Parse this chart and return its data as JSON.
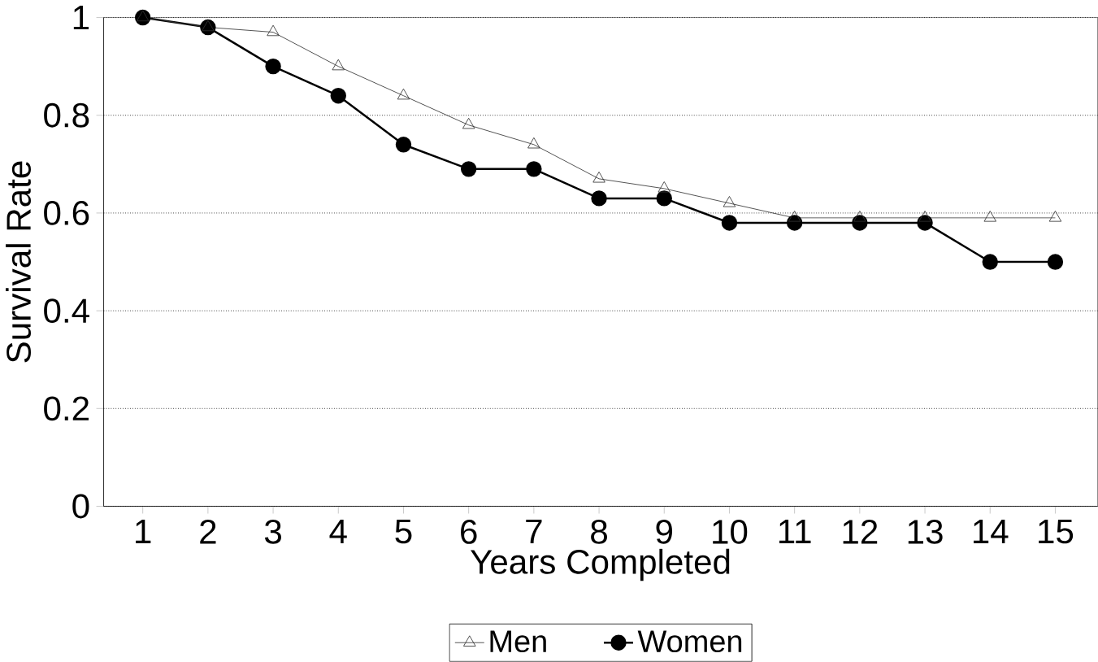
{
  "chart_data": {
    "type": "line",
    "xlabel": "Years Completed",
    "ylabel": "Survival Rate",
    "categories": [
      "1",
      "2",
      "3",
      "4",
      "5",
      "6",
      "7",
      "8",
      "9",
      "10",
      "11",
      "12",
      "13",
      "14",
      "15"
    ],
    "series": [
      {
        "name": "Men",
        "color": "#333333",
        "marker": "triangle",
        "values": [
          1.0,
          0.98,
          0.97,
          0.9,
          0.84,
          0.78,
          0.74,
          0.67,
          0.65,
          0.62,
          0.59,
          0.59,
          0.59,
          0.59,
          0.59
        ]
      },
      {
        "name": "Women",
        "color": "#000000",
        "marker": "circle",
        "values": [
          1.0,
          0.98,
          0.9,
          0.84,
          0.74,
          0.69,
          0.69,
          0.63,
          0.63,
          0.58,
          0.58,
          0.58,
          0.58,
          0.5,
          0.5
        ]
      }
    ],
    "ylim": [
      0,
      1
    ],
    "yticks": [
      0,
      0.2,
      0.4,
      0.6,
      0.8,
      1
    ],
    "grid": "y",
    "legend": "bottom",
    "line_style": "solid"
  }
}
